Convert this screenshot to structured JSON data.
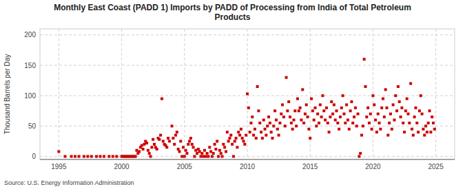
{
  "chart_data": {
    "type": "scatter",
    "title": "Monthly East Coast (PADD 1) Imports by PADD of Processing from India of Total Petroleum\nProducts",
    "ylabel": "Thousand Barrels per Day",
    "source": "Source: U.S. Energy Information Administration",
    "color": "#cc0000",
    "marker": "square",
    "grid": true,
    "xlim": [
      1993.5,
      2026.5
    ],
    "ylim": [
      -5,
      210
    ],
    "xticks": [
      1995,
      2000,
      2005,
      2010,
      2015,
      2020,
      2025
    ],
    "yticks": [
      0,
      50,
      100,
      150,
      200
    ],
    "x": [
      1995.0,
      1995.5,
      1996.0,
      1996.3,
      1996.6,
      1997.0,
      1997.3,
      1997.6,
      1998.0,
      1998.3,
      1998.6,
      1999.0,
      1999.3,
      1999.6,
      2000.0,
      2000.1,
      2000.2,
      2000.3,
      2000.4,
      2000.5,
      2000.6,
      2000.7,
      2000.8,
      2000.9,
      2001.0,
      2001.1,
      2001.2,
      2001.3,
      2001.4,
      2001.5,
      2001.6,
      2001.7,
      2001.8,
      2001.9,
      2002.0,
      2002.1,
      2002.2,
      2002.3,
      2002.4,
      2002.5,
      2002.6,
      2002.7,
      2002.8,
      2002.9,
      2003.0,
      2003.1,
      2003.2,
      2003.3,
      2003.4,
      2003.5,
      2003.6,
      2003.7,
      2003.8,
      2004.0,
      2004.1,
      2004.2,
      2004.3,
      2004.4,
      2004.5,
      2004.6,
      2004.7,
      2004.8,
      2004.9,
      2005.0,
      2005.1,
      2005.2,
      2005.3,
      2005.4,
      2005.5,
      2005.6,
      2005.7,
      2005.8,
      2005.9,
      2006.0,
      2006.1,
      2006.2,
      2006.3,
      2006.4,
      2006.5,
      2006.6,
      2006.7,
      2006.8,
      2006.9,
      2007.0,
      2007.1,
      2007.2,
      2007.3,
      2007.4,
      2007.5,
      2007.6,
      2007.7,
      2007.8,
      2007.9,
      2008.0,
      2008.1,
      2008.2,
      2008.3,
      2008.4,
      2008.5,
      2008.6,
      2008.7,
      2008.8,
      2008.9,
      2009.0,
      2009.1,
      2009.2,
      2009.3,
      2009.4,
      2009.5,
      2009.6,
      2009.7,
      2009.8,
      2009.9,
      2010.0,
      2010.1,
      2010.2,
      2010.3,
      2010.4,
      2010.5,
      2010.6,
      2010.7,
      2010.8,
      2010.9,
      2011.0,
      2011.1,
      2011.2,
      2011.3,
      2011.4,
      2011.5,
      2011.6,
      2011.7,
      2011.8,
      2011.9,
      2012.0,
      2012.1,
      2012.2,
      2012.3,
      2012.4,
      2012.5,
      2012.6,
      2012.7,
      2012.8,
      2012.9,
      2013.0,
      2013.1,
      2013.2,
      2013.3,
      2013.4,
      2013.5,
      2013.6,
      2013.7,
      2013.8,
      2013.9,
      2014.0,
      2014.1,
      2014.2,
      2014.3,
      2014.4,
      2014.5,
      2014.6,
      2014.7,
      2014.8,
      2014.9,
      2015.0,
      2015.1,
      2015.2,
      2015.3,
      2015.4,
      2015.5,
      2015.6,
      2015.7,
      2015.8,
      2015.9,
      2016.0,
      2016.1,
      2016.2,
      2016.3,
      2016.4,
      2016.5,
      2016.6,
      2016.7,
      2016.8,
      2016.9,
      2017.0,
      2017.1,
      2017.2,
      2017.3,
      2017.4,
      2017.5,
      2017.6,
      2017.7,
      2017.8,
      2017.9,
      2018.0,
      2018.1,
      2018.2,
      2018.3,
      2018.4,
      2018.5,
      2018.6,
      2018.7,
      2018.8,
      2018.9,
      2019.0,
      2019.1,
      2019.2,
      2019.3,
      2019.4,
      2019.5,
      2019.6,
      2019.7,
      2019.8,
      2019.9,
      2020.0,
      2020.1,
      2020.2,
      2020.3,
      2020.4,
      2020.5,
      2020.6,
      2020.7,
      2020.8,
      2020.9,
      2021.0,
      2021.1,
      2021.2,
      2021.3,
      2021.4,
      2021.5,
      2021.6,
      2021.7,
      2021.8,
      2021.9,
      2022.0,
      2022.1,
      2022.2,
      2022.3,
      2022.4,
      2022.5,
      2022.6,
      2022.7,
      2022.8,
      2022.9,
      2023.0,
      2023.1,
      2023.2,
      2023.3,
      2023.4,
      2023.5,
      2023.6,
      2023.7,
      2023.8,
      2023.9,
      2024.0,
      2024.1,
      2024.2,
      2024.3,
      2024.4,
      2024.5,
      2024.6,
      2024.7,
      2024.8,
      2024.9
    ],
    "values": [
      8,
      0,
      0,
      0,
      0,
      0,
      0,
      0,
      0,
      0,
      0,
      0,
      0,
      0,
      0,
      0,
      0,
      0,
      0,
      0,
      0,
      0,
      0,
      0,
      0,
      0,
      10,
      5,
      8,
      15,
      18,
      12,
      20,
      25,
      22,
      10,
      5,
      0,
      15,
      28,
      20,
      15,
      12,
      30,
      28,
      35,
      95,
      25,
      20,
      18,
      15,
      30,
      25,
      50,
      30,
      20,
      35,
      40,
      12,
      8,
      25,
      0,
      15,
      0,
      10,
      5,
      20,
      25,
      30,
      20,
      15,
      0,
      10,
      5,
      12,
      8,
      0,
      5,
      0,
      10,
      0,
      5,
      0,
      15,
      8,
      0,
      5,
      20,
      12,
      25,
      0,
      10,
      5,
      0,
      20,
      15,
      8,
      40,
      25,
      30,
      35,
      20,
      0,
      25,
      30,
      15,
      40,
      35,
      45,
      30,
      25,
      20,
      35,
      103,
      80,
      40,
      55,
      65,
      35,
      45,
      30,
      115,
      75,
      55,
      40,
      30,
      60,
      45,
      35,
      50,
      65,
      55,
      40,
      30,
      50,
      75,
      60,
      45,
      35,
      55,
      70,
      85,
      65,
      50,
      130,
      75,
      90,
      65,
      55,
      45,
      60,
      75,
      50,
      95,
      75,
      80,
      60,
      110,
      55,
      70,
      85,
      65,
      45,
      30,
      95,
      75,
      60,
      80,
      50,
      70,
      55,
      85,
      65,
      100,
      75,
      60,
      80,
      55,
      40,
      65,
      90,
      70,
      85,
      60,
      75,
      55,
      45,
      65,
      80,
      100,
      70,
      55,
      85,
      60,
      45,
      75,
      90,
      55,
      65,
      80,
      50,
      70,
      0,
      5,
      35,
      50,
      160,
      115,
      65,
      80,
      55,
      70,
      45,
      100,
      85,
      60,
      40,
      70,
      55,
      45,
      80,
      95,
      65,
      110,
      80,
      35,
      55,
      70,
      45,
      85,
      60,
      100,
      75,
      115,
      90,
      65,
      80,
      55,
      40,
      75,
      95,
      70,
      55,
      120,
      45,
      35,
      65,
      80,
      55,
      40,
      75,
      100,
      70,
      45,
      35,
      50,
      40,
      55,
      75,
      40,
      65,
      55,
      45
    ]
  }
}
